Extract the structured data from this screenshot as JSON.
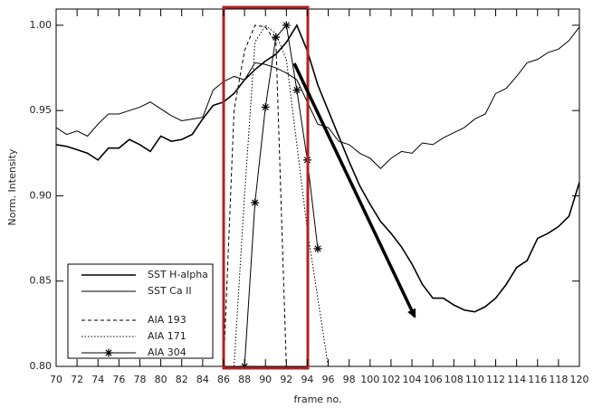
{
  "chart_data": {
    "type": "line",
    "xlabel": "frame no.",
    "ylabel": "Norm. Intensity",
    "x": [
      70,
      71,
      72,
      73,
      74,
      75,
      76,
      77,
      78,
      79,
      80,
      81,
      82,
      83,
      84,
      85,
      86,
      87,
      88,
      89,
      90,
      91,
      92,
      93,
      94,
      95,
      96,
      97,
      98,
      99,
      100,
      101,
      102,
      103,
      104,
      105,
      106,
      107,
      108,
      109,
      110,
      111,
      112,
      113,
      114,
      115,
      116,
      117,
      118,
      119,
      120
    ],
    "xlim": [
      70,
      120
    ],
    "xticks": [
      70,
      72,
      74,
      76,
      78,
      80,
      82,
      84,
      86,
      88,
      90,
      92,
      94,
      96,
      98,
      100,
      102,
      104,
      106,
      108,
      110,
      112,
      114,
      116,
      118,
      120
    ],
    "ylim": [
      0.8,
      1.0095
    ],
    "yticks": [
      {
        "value": 0.8,
        "label": "0.80"
      },
      0.85,
      {
        "value": 0.9,
        "label": "0.90"
      },
      0.95,
      {
        "value": 1.0,
        "label": "1.00"
      }
    ],
    "series": [
      {
        "name": "SST H-alpha",
        "color": "#000000",
        "width": 1.6,
        "dash": "solid",
        "marker": "none",
        "values": [
          0.93,
          0.929,
          0.927,
          0.925,
          0.921,
          0.928,
          0.928,
          0.933,
          0.93,
          0.926,
          0.935,
          0.932,
          0.933,
          0.936,
          0.945,
          0.953,
          0.955,
          0.96,
          0.968,
          0.974,
          0.979,
          0.983,
          0.99,
          1.0,
          0.985,
          0.965,
          0.95,
          0.935,
          0.92,
          0.906,
          0.895,
          0.885,
          0.878,
          0.87,
          0.86,
          0.848,
          0.84,
          0.84,
          0.836,
          0.833,
          0.832,
          0.835,
          0.84,
          0.848,
          0.858,
          0.862,
          0.875,
          0.878,
          0.882,
          0.888,
          0.908
        ]
      },
      {
        "name": "SST Ca II",
        "color": "#000000",
        "width": 1,
        "dash": "solid",
        "marker": "none",
        "values": [
          0.94,
          0.936,
          0.938,
          0.935,
          0.942,
          0.948,
          0.948,
          0.95,
          0.952,
          0.955,
          0.951,
          0.947,
          0.944,
          0.945,
          0.946,
          0.962,
          0.967,
          0.97,
          0.968,
          0.978,
          0.977,
          0.975,
          0.972,
          0.968,
          0.955,
          0.942,
          0.94,
          0.932,
          0.93,
          0.925,
          0.922,
          0.916,
          0.922,
          0.926,
          0.925,
          0.931,
          0.93,
          0.934,
          0.937,
          0.94,
          0.945,
          0.948,
          0.96,
          0.963,
          0.97,
          0.978,
          0.98,
          0.984,
          0.986,
          0.991,
          0.999
        ]
      },
      {
        "name": "AIA 193",
        "color": "#000000",
        "width": 1,
        "dash": "dashed",
        "marker": "none",
        "values": [
          null,
          null,
          null,
          null,
          null,
          null,
          null,
          null,
          null,
          null,
          null,
          null,
          null,
          null,
          null,
          null,
          0.8,
          0.95,
          0.985,
          1.0,
          0.999,
          0.99,
          0.8,
          null,
          null,
          null,
          null,
          null,
          null,
          null,
          null,
          null,
          null,
          null,
          null,
          null,
          null,
          null,
          null,
          null,
          null,
          null,
          null,
          null,
          null,
          null,
          null,
          null,
          null,
          null,
          null
        ]
      },
      {
        "name": "AIA 171",
        "color": "#000000",
        "width": 1,
        "dash": "dotted",
        "marker": "none",
        "values": [
          null,
          null,
          null,
          null,
          null,
          null,
          null,
          null,
          null,
          null,
          null,
          null,
          null,
          null,
          null,
          null,
          null,
          0.8,
          0.9,
          0.99,
          1.0,
          0.995,
          0.98,
          0.93,
          0.88,
          0.84,
          0.8,
          null,
          null,
          null,
          null,
          null,
          null,
          null,
          null,
          null,
          null,
          null,
          null,
          null,
          null,
          null,
          null,
          null,
          null,
          null,
          null,
          null,
          null,
          null,
          null
        ]
      },
      {
        "name": "AIA 304",
        "color": "#000000",
        "width": 1,
        "dash": "solid",
        "marker": "asterisk",
        "values": [
          null,
          null,
          null,
          null,
          null,
          null,
          null,
          null,
          null,
          null,
          null,
          null,
          null,
          null,
          null,
          null,
          null,
          null,
          0.8,
          0.896,
          0.952,
          0.993,
          1.0,
          0.962,
          0.921,
          0.869,
          null,
          null,
          null,
          null,
          null,
          null,
          null,
          null,
          null,
          null,
          null,
          null,
          null,
          null,
          null,
          null,
          null,
          null,
          null,
          null,
          null,
          null,
          null,
          null,
          null
        ]
      }
    ]
  }
}
